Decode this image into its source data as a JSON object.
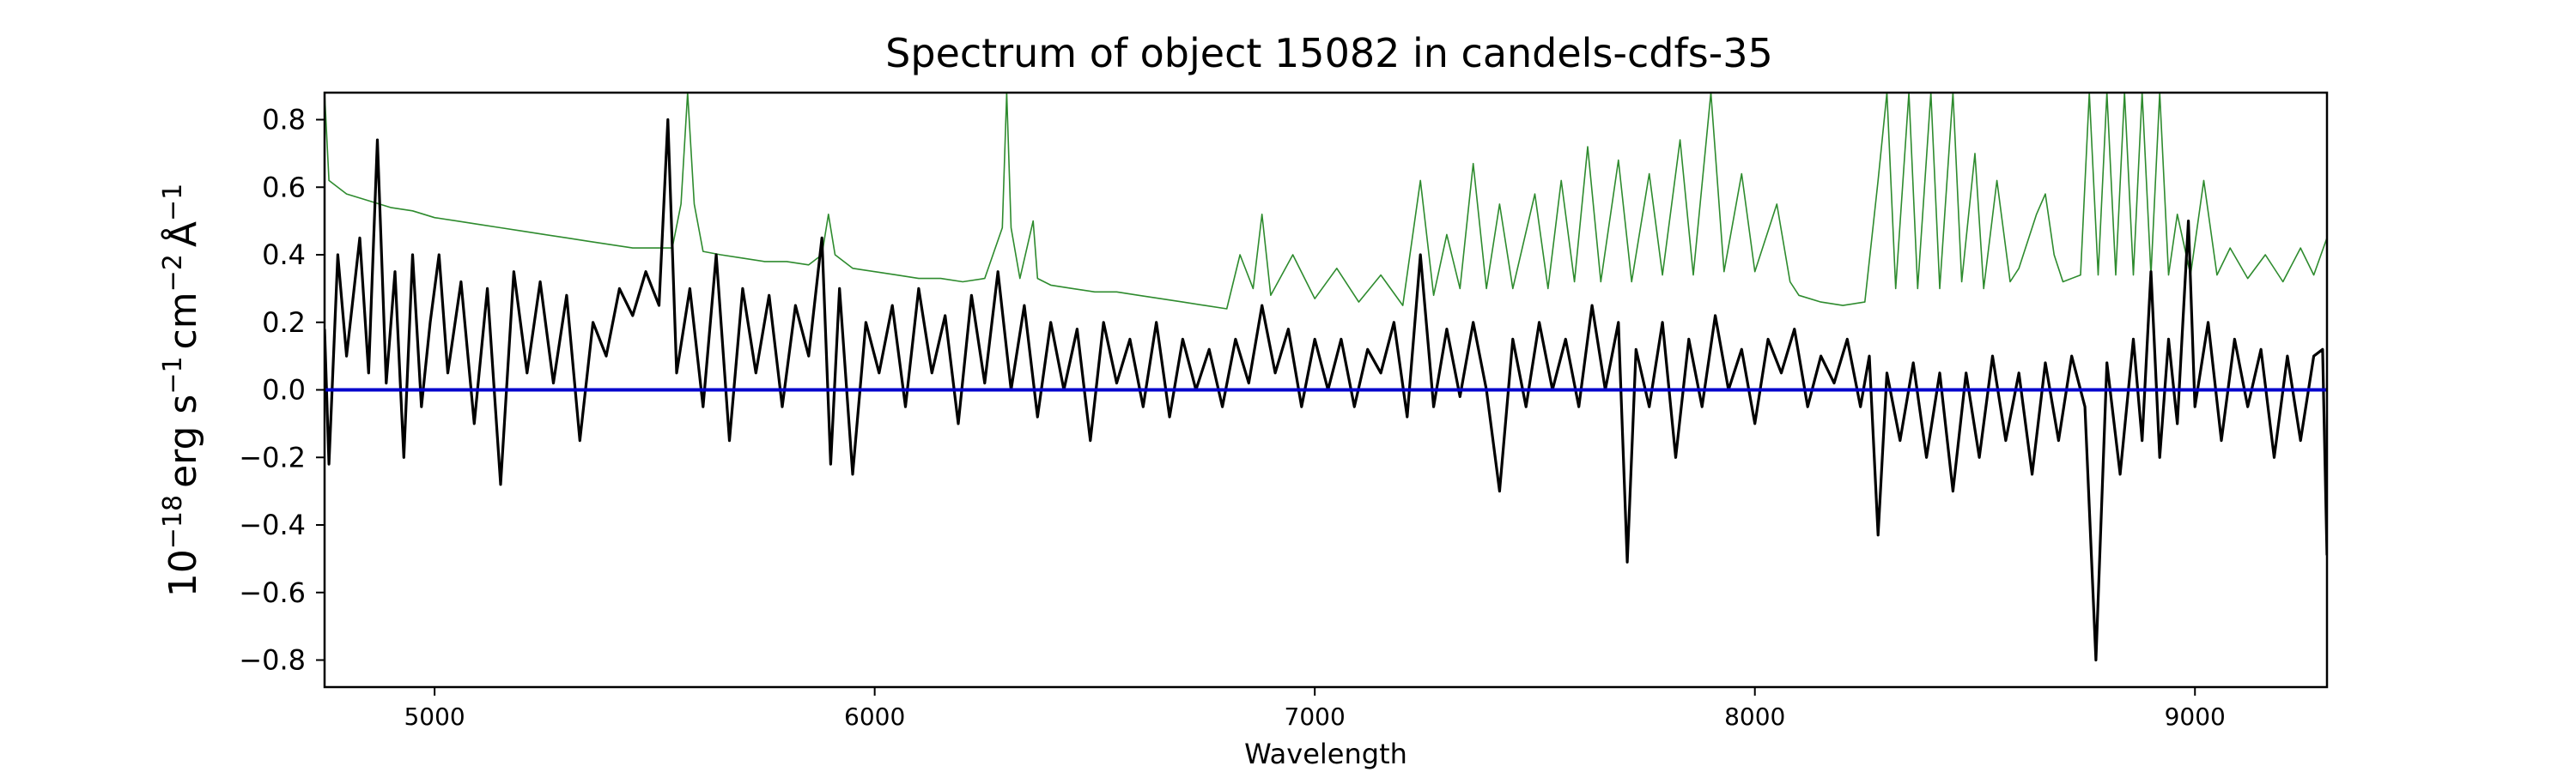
{
  "chart_data": {
    "type": "line",
    "title": "Spectrum of object 15082 in candels-cdfs-35",
    "xlabel": "Wavelength",
    "ylabel_base": "10",
    "ylabel_exp": "−18",
    "ylabel_unit_erg": "erg s",
    "ylabel_unit_cm": "cm",
    "ylabel_unit_ang": "Å",
    "ylabel_exp_neg1": "−1",
    "ylabel_exp_neg2": "−2",
    "xlim": [
      4750,
      9300
    ],
    "ylim": [
      -0.88,
      0.88
    ],
    "x_ticks": [
      5000,
      6000,
      7000,
      8000,
      9000
    ],
    "x_tick_labels": [
      "5000",
      "6000",
      "7000",
      "8000",
      "9000"
    ],
    "y_ticks": [
      -0.8,
      -0.6,
      -0.4,
      -0.2,
      0.0,
      0.2,
      0.4,
      0.6,
      0.8
    ],
    "y_tick_labels": [
      "−0.8",
      "−0.6",
      "−0.4",
      "−0.2",
      "0.0",
      "0.2",
      "0.4",
      "0.6",
      "0.8"
    ],
    "grid": false,
    "legend": "none",
    "series": [
      {
        "role": "error",
        "color": "#2e8b2e",
        "points": [
          [
            4750,
            0.88
          ],
          [
            4760,
            0.62
          ],
          [
            4800,
            0.58
          ],
          [
            4850,
            0.56
          ],
          [
            4900,
            0.54
          ],
          [
            4950,
            0.53
          ],
          [
            5000,
            0.51
          ],
          [
            5050,
            0.5
          ],
          [
            5100,
            0.49
          ],
          [
            5150,
            0.48
          ],
          [
            5200,
            0.47
          ],
          [
            5250,
            0.46
          ],
          [
            5300,
            0.45
          ],
          [
            5350,
            0.44
          ],
          [
            5400,
            0.43
          ],
          [
            5450,
            0.42
          ],
          [
            5500,
            0.42
          ],
          [
            5540,
            0.42
          ],
          [
            5560,
            0.55
          ],
          [
            5575,
            0.88
          ],
          [
            5590,
            0.55
          ],
          [
            5610,
            0.41
          ],
          [
            5650,
            0.4
          ],
          [
            5700,
            0.39
          ],
          [
            5750,
            0.38
          ],
          [
            5800,
            0.38
          ],
          [
            5850,
            0.37
          ],
          [
            5880,
            0.4
          ],
          [
            5895,
            0.52
          ],
          [
            5910,
            0.4
          ],
          [
            5950,
            0.36
          ],
          [
            6000,
            0.35
          ],
          [
            6050,
            0.34
          ],
          [
            6100,
            0.33
          ],
          [
            6150,
            0.33
          ],
          [
            6200,
            0.32
          ],
          [
            6250,
            0.33
          ],
          [
            6290,
            0.48
          ],
          [
            6300,
            0.88
          ],
          [
            6310,
            0.48
          ],
          [
            6330,
            0.33
          ],
          [
            6360,
            0.5
          ],
          [
            6370,
            0.33
          ],
          [
            6400,
            0.31
          ],
          [
            6450,
            0.3
          ],
          [
            6500,
            0.29
          ],
          [
            6550,
            0.29
          ],
          [
            6600,
            0.28
          ],
          [
            6650,
            0.27
          ],
          [
            6700,
            0.26
          ],
          [
            6750,
            0.25
          ],
          [
            6800,
            0.24
          ],
          [
            6830,
            0.4
          ],
          [
            6860,
            0.3
          ],
          [
            6880,
            0.52
          ],
          [
            6900,
            0.28
          ],
          [
            6950,
            0.4
          ],
          [
            7000,
            0.27
          ],
          [
            7050,
            0.36
          ],
          [
            7100,
            0.26
          ],
          [
            7150,
            0.34
          ],
          [
            7200,
            0.25
          ],
          [
            7240,
            0.62
          ],
          [
            7270,
            0.28
          ],
          [
            7300,
            0.46
          ],
          [
            7330,
            0.3
          ],
          [
            7360,
            0.67
          ],
          [
            7390,
            0.3
          ],
          [
            7420,
            0.55
          ],
          [
            7450,
            0.3
          ],
          [
            7500,
            0.58
          ],
          [
            7530,
            0.3
          ],
          [
            7560,
            0.62
          ],
          [
            7590,
            0.32
          ],
          [
            7620,
            0.72
          ],
          [
            7650,
            0.32
          ],
          [
            7690,
            0.68
          ],
          [
            7720,
            0.32
          ],
          [
            7760,
            0.64
          ],
          [
            7790,
            0.34
          ],
          [
            7830,
            0.74
          ],
          [
            7860,
            0.34
          ],
          [
            7900,
            0.88
          ],
          [
            7930,
            0.35
          ],
          [
            7970,
            0.64
          ],
          [
            8000,
            0.35
          ],
          [
            8050,
            0.55
          ],
          [
            8080,
            0.32
          ],
          [
            8100,
            0.28
          ],
          [
            8150,
            0.26
          ],
          [
            8200,
            0.25
          ],
          [
            8250,
            0.26
          ],
          [
            8280,
            0.62
          ],
          [
            8300,
            0.88
          ],
          [
            8320,
            0.3
          ],
          [
            8350,
            0.88
          ],
          [
            8370,
            0.3
          ],
          [
            8400,
            0.88
          ],
          [
            8420,
            0.3
          ],
          [
            8450,
            0.88
          ],
          [
            8470,
            0.32
          ],
          [
            8500,
            0.7
          ],
          [
            8520,
            0.3
          ],
          [
            8550,
            0.62
          ],
          [
            8580,
            0.32
          ],
          [
            8600,
            0.36
          ],
          [
            8640,
            0.52
          ],
          [
            8660,
            0.58
          ],
          [
            8680,
            0.4
          ],
          [
            8700,
            0.32
          ],
          [
            8740,
            0.34
          ],
          [
            8760,
            0.88
          ],
          [
            8780,
            0.34
          ],
          [
            8800,
            0.88
          ],
          [
            8820,
            0.34
          ],
          [
            8840,
            0.88
          ],
          [
            8860,
            0.34
          ],
          [
            8880,
            0.88
          ],
          [
            8900,
            0.34
          ],
          [
            8920,
            0.88
          ],
          [
            8940,
            0.34
          ],
          [
            8960,
            0.52
          ],
          [
            8990,
            0.34
          ],
          [
            9020,
            0.62
          ],
          [
            9050,
            0.34
          ],
          [
            9080,
            0.42
          ],
          [
            9120,
            0.33
          ],
          [
            9160,
            0.4
          ],
          [
            9200,
            0.32
          ],
          [
            9240,
            0.42
          ],
          [
            9270,
            0.34
          ],
          [
            9300,
            0.45
          ]
        ]
      },
      {
        "role": "flux",
        "color": "#000000",
        "points": [
          [
            4750,
            0.18
          ],
          [
            4760,
            -0.22
          ],
          [
            4780,
            0.4
          ],
          [
            4800,
            0.1
          ],
          [
            4830,
            0.45
          ],
          [
            4850,
            0.05
          ],
          [
            4870,
            0.74
          ],
          [
            4890,
            0.02
          ],
          [
            4910,
            0.35
          ],
          [
            4930,
            -0.2
          ],
          [
            4950,
            0.4
          ],
          [
            4970,
            -0.05
          ],
          [
            4990,
            0.2
          ],
          [
            5010,
            0.4
          ],
          [
            5030,
            0.05
          ],
          [
            5060,
            0.32
          ],
          [
            5090,
            -0.1
          ],
          [
            5120,
            0.3
          ],
          [
            5150,
            -0.28
          ],
          [
            5180,
            0.35
          ],
          [
            5210,
            0.05
          ],
          [
            5240,
            0.32
          ],
          [
            5270,
            0.02
          ],
          [
            5300,
            0.28
          ],
          [
            5330,
            -0.15
          ],
          [
            5360,
            0.2
          ],
          [
            5390,
            0.1
          ],
          [
            5420,
            0.3
          ],
          [
            5450,
            0.22
          ],
          [
            5480,
            0.35
          ],
          [
            5510,
            0.25
          ],
          [
            5530,
            0.8
          ],
          [
            5550,
            0.05
          ],
          [
            5580,
            0.3
          ],
          [
            5610,
            -0.05
          ],
          [
            5640,
            0.4
          ],
          [
            5670,
            -0.15
          ],
          [
            5700,
            0.3
          ],
          [
            5730,
            0.05
          ],
          [
            5760,
            0.28
          ],
          [
            5790,
            -0.05
          ],
          [
            5820,
            0.25
          ],
          [
            5850,
            0.1
          ],
          [
            5880,
            0.45
          ],
          [
            5900,
            -0.22
          ],
          [
            5920,
            0.3
          ],
          [
            5950,
            -0.25
          ],
          [
            5980,
            0.2
          ],
          [
            6010,
            0.05
          ],
          [
            6040,
            0.25
          ],
          [
            6070,
            -0.05
          ],
          [
            6100,
            0.3
          ],
          [
            6130,
            0.05
          ],
          [
            6160,
            0.22
          ],
          [
            6190,
            -0.1
          ],
          [
            6220,
            0.28
          ],
          [
            6250,
            0.02
          ],
          [
            6280,
            0.35
          ],
          [
            6310,
            0.0
          ],
          [
            6340,
            0.25
          ],
          [
            6370,
            -0.08
          ],
          [
            6400,
            0.2
          ],
          [
            6430,
            0.0
          ],
          [
            6460,
            0.18
          ],
          [
            6490,
            -0.15
          ],
          [
            6520,
            0.2
          ],
          [
            6550,
            0.02
          ],
          [
            6580,
            0.15
          ],
          [
            6610,
            -0.05
          ],
          [
            6640,
            0.2
          ],
          [
            6670,
            -0.08
          ],
          [
            6700,
            0.15
          ],
          [
            6730,
            0.0
          ],
          [
            6760,
            0.12
          ],
          [
            6790,
            -0.05
          ],
          [
            6820,
            0.15
          ],
          [
            6850,
            0.02
          ],
          [
            6880,
            0.25
          ],
          [
            6910,
            0.05
          ],
          [
            6940,
            0.18
          ],
          [
            6970,
            -0.05
          ],
          [
            7000,
            0.15
          ],
          [
            7030,
            0.0
          ],
          [
            7060,
            0.15
          ],
          [
            7090,
            -0.05
          ],
          [
            7120,
            0.12
          ],
          [
            7150,
            0.05
          ],
          [
            7180,
            0.2
          ],
          [
            7210,
            -0.08
          ],
          [
            7240,
            0.4
          ],
          [
            7270,
            -0.05
          ],
          [
            7300,
            0.18
          ],
          [
            7330,
            -0.02
          ],
          [
            7360,
            0.2
          ],
          [
            7390,
            0.0
          ],
          [
            7420,
            -0.3
          ],
          [
            7450,
            0.15
          ],
          [
            7480,
            -0.05
          ],
          [
            7510,
            0.2
          ],
          [
            7540,
            0.0
          ],
          [
            7570,
            0.15
          ],
          [
            7600,
            -0.05
          ],
          [
            7630,
            0.25
          ],
          [
            7660,
            0.0
          ],
          [
            7690,
            0.2
          ],
          [
            7710,
            -0.51
          ],
          [
            7730,
            0.12
          ],
          [
            7760,
            -0.05
          ],
          [
            7790,
            0.2
          ],
          [
            7820,
            -0.2
          ],
          [
            7850,
            0.15
          ],
          [
            7880,
            -0.05
          ],
          [
            7910,
            0.22
          ],
          [
            7940,
            0.0
          ],
          [
            7970,
            0.12
          ],
          [
            8000,
            -0.1
          ],
          [
            8030,
            0.15
          ],
          [
            8060,
            0.05
          ],
          [
            8090,
            0.18
          ],
          [
            8120,
            -0.05
          ],
          [
            8150,
            0.1
          ],
          [
            8180,
            0.02
          ],
          [
            8210,
            0.15
          ],
          [
            8240,
            -0.05
          ],
          [
            8260,
            0.1
          ],
          [
            8280,
            -0.43
          ],
          [
            8300,
            0.05
          ],
          [
            8330,
            -0.15
          ],
          [
            8360,
            0.08
          ],
          [
            8390,
            -0.2
          ],
          [
            8420,
            0.05
          ],
          [
            8450,
            -0.3
          ],
          [
            8480,
            0.05
          ],
          [
            8510,
            -0.2
          ],
          [
            8540,
            0.1
          ],
          [
            8570,
            -0.15
          ],
          [
            8600,
            0.05
          ],
          [
            8630,
            -0.25
          ],
          [
            8660,
            0.08
          ],
          [
            8690,
            -0.15
          ],
          [
            8720,
            0.1
          ],
          [
            8750,
            -0.05
          ],
          [
            8775,
            -0.8
          ],
          [
            8800,
            0.08
          ],
          [
            8830,
            -0.25
          ],
          [
            8860,
            0.15
          ],
          [
            8880,
            -0.15
          ],
          [
            8900,
            0.35
          ],
          [
            8920,
            -0.2
          ],
          [
            8940,
            0.15
          ],
          [
            8960,
            -0.1
          ],
          [
            8985,
            0.5
          ],
          [
            9000,
            -0.05
          ],
          [
            9030,
            0.2
          ],
          [
            9060,
            -0.15
          ],
          [
            9090,
            0.15
          ],
          [
            9120,
            -0.05
          ],
          [
            9150,
            0.12
          ],
          [
            9180,
            -0.2
          ],
          [
            9210,
            0.1
          ],
          [
            9240,
            -0.15
          ],
          [
            9270,
            0.1
          ],
          [
            9290,
            0.12
          ],
          [
            9300,
            -0.49
          ]
        ]
      },
      {
        "role": "zero",
        "color": "#0000cc",
        "points": [
          [
            4750,
            0.0
          ],
          [
            9300,
            0.0
          ]
        ]
      }
    ]
  }
}
